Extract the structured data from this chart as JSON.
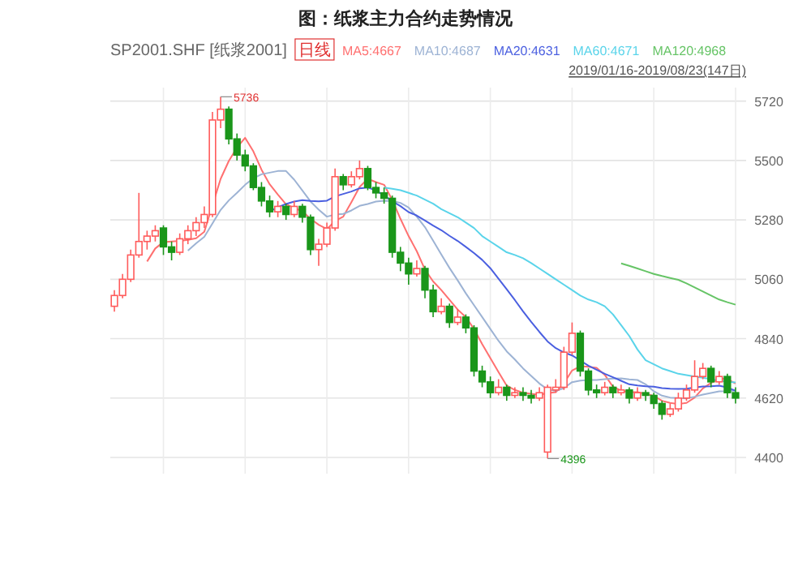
{
  "chart_data": {
    "type": "candlestick",
    "title": "图：纸浆主力合约走势情况",
    "subtitle": "SP2001.SHF [纸浆2001]",
    "annotations": [
      "日线",
      "2019/01/16-2019/08/23(147日)",
      "5736",
      "4396"
    ],
    "categories": [
      null,
      null,
      null,
      null,
      null,
      null,
      null,
      null,
      null,
      null,
      null,
      null,
      null,
      null,
      null,
      null,
      null,
      null,
      null,
      null,
      null,
      null,
      null,
      null,
      null,
      null,
      null,
      null,
      null,
      null,
      null,
      null,
      null,
      null,
      null,
      null,
      null,
      null,
      null,
      null,
      null,
      null,
      null,
      null,
      null,
      null,
      null,
      null,
      null,
      null,
      null,
      null,
      null,
      null,
      null,
      null,
      null,
      null,
      null,
      null,
      null,
      null,
      null,
      null,
      null,
      null,
      null,
      null,
      null,
      null,
      null,
      null,
      null,
      null,
      null,
      null,
      null
    ],
    "ohlc": [
      [
        4960,
        5020,
        4940,
        5000
      ],
      [
        5000,
        5080,
        4990,
        5060
      ],
      [
        5060,
        5170,
        5050,
        5150
      ],
      [
        5150,
        5380,
        5140,
        5200
      ],
      [
        5200,
        5240,
        5170,
        5220
      ],
      [
        5220,
        5260,
        5200,
        5240
      ],
      [
        5250,
        5260,
        5150,
        5180
      ],
      [
        5180,
        5200,
        5130,
        5160
      ],
      [
        5160,
        5230,
        5150,
        5210
      ],
      [
        5210,
        5260,
        5190,
        5240
      ],
      [
        5240,
        5290,
        5220,
        5270
      ],
      [
        5270,
        5330,
        5250,
        5300
      ],
      [
        5300,
        5680,
        5290,
        5650
      ],
      [
        5650,
        5736,
        5620,
        5690
      ],
      [
        5690,
        5700,
        5560,
        5580
      ],
      [
        5580,
        5600,
        5500,
        5520
      ],
      [
        5520,
        5540,
        5460,
        5480
      ],
      [
        5480,
        5490,
        5390,
        5400
      ],
      [
        5400,
        5420,
        5330,
        5350
      ],
      [
        5350,
        5370,
        5290,
        5310
      ],
      [
        5310,
        5350,
        5290,
        5330
      ],
      [
        5330,
        5340,
        5280,
        5300
      ],
      [
        5300,
        5350,
        5290,
        5330
      ],
      [
        5330,
        5340,
        5270,
        5290
      ],
      [
        5290,
        5300,
        5150,
        5170
      ],
      [
        5170,
        5210,
        5110,
        5190
      ],
      [
        5190,
        5270,
        5180,
        5250
      ],
      [
        5250,
        5470,
        5240,
        5440
      ],
      [
        5440,
        5450,
        5390,
        5410
      ],
      [
        5410,
        5460,
        5400,
        5440
      ],
      [
        5440,
        5500,
        5430,
        5470
      ],
      [
        5470,
        5480,
        5390,
        5400
      ],
      [
        5400,
        5420,
        5360,
        5380
      ],
      [
        5380,
        5400,
        5340,
        5360
      ],
      [
        5360,
        5370,
        5140,
        5160
      ],
      [
        5160,
        5180,
        5090,
        5120
      ],
      [
        5120,
        5140,
        5040,
        5080
      ],
      [
        5080,
        5130,
        5070,
        5100
      ],
      [
        5100,
        5110,
        4990,
        5020
      ],
      [
        5020,
        5040,
        4920,
        4940
      ],
      [
        4940,
        4990,
        4930,
        4960
      ],
      [
        4960,
        4970,
        4880,
        4900
      ],
      [
        4900,
        4950,
        4890,
        4920
      ],
      [
        4920,
        4930,
        4860,
        4880
      ],
      [
        4880,
        4890,
        4700,
        4720
      ],
      [
        4720,
        4740,
        4660,
        4680
      ],
      [
        4680,
        4700,
        4620,
        4640
      ],
      [
        4640,
        4690,
        4630,
        4660
      ],
      [
        4660,
        4670,
        4610,
        4630
      ],
      [
        4630,
        4660,
        4620,
        4640
      ],
      [
        4640,
        4660,
        4610,
        4630
      ],
      [
        4630,
        4650,
        4600,
        4620
      ],
      [
        4620,
        4660,
        4610,
        4640
      ],
      [
        4420,
        4670,
        4396,
        4660
      ],
      [
        4650,
        4690,
        4640,
        4660
      ],
      [
        4660,
        4810,
        4650,
        4790
      ],
      [
        4790,
        4900,
        4780,
        4860
      ],
      [
        4860,
        4870,
        4700,
        4720
      ],
      [
        4720,
        4730,
        4630,
        4650
      ],
      [
        4650,
        4670,
        4620,
        4640
      ],
      [
        4640,
        4680,
        4630,
        4660
      ],
      [
        4660,
        4670,
        4620,
        4640
      ],
      [
        4640,
        4670,
        4630,
        4650
      ],
      [
        4650,
        4660,
        4600,
        4620
      ],
      [
        4620,
        4660,
        4610,
        4640
      ],
      [
        4640,
        4650,
        4610,
        4630
      ],
      [
        4630,
        4640,
        4580,
        4600
      ],
      [
        4600,
        4610,
        4540,
        4560
      ],
      [
        4560,
        4600,
        4550,
        4580
      ],
      [
        4580,
        4640,
        4570,
        4620
      ],
      [
        4620,
        4670,
        4610,
        4650
      ],
      [
        4650,
        4760,
        4640,
        4700
      ],
      [
        4700,
        4750,
        4690,
        4730
      ],
      [
        4730,
        4740,
        4660,
        4680
      ],
      [
        4680,
        4720,
        4670,
        4700
      ],
      [
        4700,
        4710,
        4620,
        4640
      ],
      [
        4640,
        4660,
        4600,
        4620
      ]
    ],
    "colors": [
      "#ff5b5b",
      "#ff5b5b",
      "#ff5b5b",
      "#ff5b5b",
      "#ff5b5b",
      "#ff5b5b",
      "#1a961a",
      "#1a961a",
      "#ff5b5b",
      "#ff5b5b",
      "#ff5b5b",
      "#ff5b5b",
      "#ff5b5b",
      "#ff5b5b",
      "#1a961a",
      "#1a961a",
      "#1a961a",
      "#1a961a",
      "#1a961a",
      "#1a961a",
      "#ff5b5b",
      "#1a961a",
      "#ff5b5b",
      "#1a961a",
      "#1a961a",
      "#ff5b5b",
      "#ff5b5b",
      "#ff5b5b",
      "#1a961a",
      "#ff5b5b",
      "#ff5b5b",
      "#1a961a",
      "#1a961a",
      "#1a961a",
      "#1a961a",
      "#1a961a",
      "#1a961a",
      "#ff5b5b",
      "#1a961a",
      "#1a961a",
      "#ff5b5b",
      "#1a961a",
      "#ff5b5b",
      "#1a961a",
      "#1a961a",
      "#1a961a",
      "#1a961a",
      "#ff5b5b",
      "#1a961a",
      "#ff5b5b",
      "#1a961a",
      "#1a961a",
      "#ff5b5b",
      "#ff5b5b",
      "#ff5b5b",
      "#ff5b5b",
      "#ff5b5b",
      "#1a961a",
      "#1a961a",
      "#1a961a",
      "#ff5b5b",
      "#1a961a",
      "#ff5b5b",
      "#1a961a",
      "#ff5b5b",
      "#1a961a",
      "#1a961a",
      "#1a961a",
      "#ff5b5b",
      "#ff5b5b",
      "#ff5b5b",
      "#ff5b5b",
      "#ff5b5b",
      "#1a961a",
      "#ff5b5b",
      "#1a961a",
      "#1a961a"
    ],
    "series": [
      {
        "name": "MA5:4667",
        "type": "line",
        "color": "#ff7070",
        "values": [
          null,
          null,
          null,
          null,
          5126,
          5174,
          5198,
          5200,
          5202,
          5206,
          5212,
          5236,
          5334,
          5432,
          5498,
          5548,
          5584,
          5534,
          5466,
          5412,
          5374,
          5338,
          5324,
          5312,
          5284,
          5262,
          5246,
          5276,
          5292,
          5346,
          5402,
          5432,
          5420,
          5410,
          5354,
          5284,
          5220,
          5164,
          5096,
          5052,
          5020,
          4984,
          4948,
          4920,
          4876,
          4820,
          4768,
          4716,
          4666,
          4650,
          4640,
          4636,
          4632,
          4638,
          4642,
          4674,
          4722,
          4738,
          4736,
          4732,
          4706,
          4662,
          4648,
          4642,
          4642,
          4636,
          4628,
          4610,
          4602,
          4598,
          4602,
          4622,
          4656,
          4676,
          4692,
          4690,
          4674
        ]
      },
      {
        "name": "MA10:4687",
        "type": "line",
        "color": "#9db3d4",
        "values": [
          null,
          null,
          null,
          null,
          null,
          null,
          null,
          null,
          null,
          5166,
          5193,
          5217,
          5267,
          5317,
          5352,
          5380,
          5410,
          5434,
          5449,
          5455,
          5461,
          5461,
          5429,
          5389,
          5348,
          5318,
          5292,
          5300,
          5302,
          5315,
          5332,
          5339,
          5348,
          5351,
          5350,
          5343,
          5326,
          5292,
          5253,
          5203,
          5152,
          5102,
          5056,
          5008,
          4964,
          4920,
          4876,
          4832,
          4793,
          4763,
          4730,
          4702,
          4674,
          4652,
          4646,
          4657,
          4679,
          4685,
          4687,
          4687,
          4690,
          4692,
          4693,
          4689,
          4687,
          4671,
          4645,
          4629,
          4622,
          4620,
          4619,
          4625,
          4633,
          4639,
          4645,
          4646,
          4648
        ]
      },
      {
        "name": "MA20:4631",
        "type": "line",
        "color": "#4a5fe0",
        "values": [
          null,
          null,
          null,
          null,
          null,
          null,
          null,
          null,
          null,
          null,
          null,
          null,
          null,
          null,
          null,
          null,
          null,
          null,
          null,
          5311,
          5327,
          5339,
          5348,
          5353,
          5350,
          5349,
          5351,
          5367,
          5376,
          5385,
          5397,
          5400,
          5389,
          5370,
          5349,
          5331,
          5309,
          5296,
          5278,
          5259,
          5242,
          5221,
          5202,
          5180,
          5157,
          5132,
          5101,
          5062,
          5023,
          4983,
          4941,
          4902,
          4865,
          4830,
          4805,
          4789,
          4778,
          4759,
          4740,
          4725,
          4710,
          4697,
          4684,
          4671,
          4667,
          4664,
          4662,
          4657,
          4655,
          4654,
          4655,
          4659,
          4663,
          4664,
          4666,
          4659,
          4647
        ]
      },
      {
        "name": "MA60:4671",
        "type": "line",
        "color": "#5ad4ea",
        "values": [
          null,
          null,
          null,
          null,
          null,
          null,
          null,
          null,
          null,
          null,
          null,
          null,
          null,
          null,
          null,
          null,
          null,
          null,
          null,
          null,
          null,
          null,
          null,
          null,
          null,
          null,
          null,
          null,
          null,
          null,
          null,
          null,
          null,
          5400,
          5395,
          5390,
          5380,
          5370,
          5355,
          5340,
          5320,
          5305,
          5290,
          5270,
          5250,
          5220,
          5200,
          5180,
          5160,
          5150,
          5138,
          5120,
          5100,
          5080,
          5060,
          5040,
          5020,
          5000,
          4985,
          4975,
          4960,
          4930,
          4890,
          4850,
          4800,
          4760,
          4745,
          4730,
          4720,
          4710,
          4705,
          4700,
          4695,
          4690,
          4685,
          4680,
          4678
        ]
      },
      {
        "name": "MA120:4968",
        "type": "line",
        "color": "#66c466",
        "values": [
          null,
          null,
          null,
          null,
          null,
          null,
          null,
          null,
          null,
          null,
          null,
          null,
          null,
          null,
          null,
          null,
          null,
          null,
          null,
          null,
          null,
          null,
          null,
          null,
          null,
          null,
          null,
          null,
          null,
          null,
          null,
          null,
          null,
          null,
          null,
          null,
          null,
          null,
          null,
          null,
          null,
          null,
          null,
          null,
          null,
          null,
          null,
          null,
          null,
          null,
          null,
          null,
          null,
          null,
          null,
          null,
          null,
          null,
          null,
          null,
          null,
          null,
          5119,
          5110,
          5100,
          5090,
          5080,
          5072,
          5065,
          5058,
          5045,
          5030,
          5015,
          5000,
          4985,
          4975,
          4966
        ]
      }
    ],
    "ylim": [
      4340,
      5770
    ],
    "yticks": [
      4400,
      4620,
      4840,
      5060,
      5280,
      5500,
      5720
    ],
    "grid": true,
    "legend": "top"
  }
}
